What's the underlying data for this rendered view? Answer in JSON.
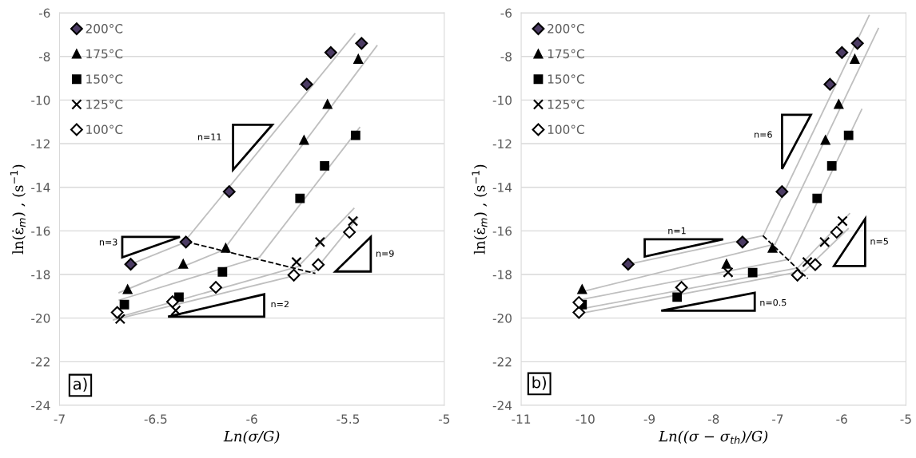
{
  "chart_data": [
    {
      "type": "scatter",
      "xlabel": "Ln(σ/G)",
      "ylabel": "ln(ε̇$_{m}$) , (s$^{−1}$)",
      "xlim": [
        -7,
        -5
      ],
      "xticks": [
        -7,
        -6.5,
        -6,
        -5.5,
        -5
      ],
      "ylim": [
        -24,
        -6
      ],
      "yticks": [
        -24,
        -22,
        -20,
        -18,
        -16,
        -14,
        -12,
        -10,
        -8,
        -6
      ],
      "grid": "y",
      "legend": "top left",
      "annotations": [
        "a)",
        "n=11",
        "n=3",
        "n=9",
        "n=2"
      ],
      "series": [
        {
          "name": "200°C",
          "marker": "diamond",
          "color": "#4b3b63",
          "x": [
            -6.63,
            -6.343,
            -6.118,
            -5.715,
            -5.59,
            -5.43
          ],
          "values": [
            -17.53,
            -16.51,
            -14.2,
            -9.28,
            -7.82,
            -7.4
          ]
        },
        {
          "name": "175°C",
          "marker": "triangle",
          "color": "#000000",
          "x": [
            -6.646,
            -6.357,
            -6.136,
            -5.729,
            -5.607,
            -5.447
          ],
          "values": [
            -18.68,
            -17.52,
            -16.79,
            -11.84,
            -10.19,
            -8.12
          ]
        },
        {
          "name": "150°C",
          "marker": "square",
          "color": "#000000",
          "x": [
            -6.663,
            -6.379,
            -6.153,
            -5.75,
            -5.622,
            -5.461
          ],
          "values": [
            -19.38,
            -19.04,
            -17.88,
            -14.51,
            -13.02,
            -11.62
          ]
        },
        {
          "name": "125°C",
          "marker": "cross",
          "color": "#000000",
          "x": [
            -6.685,
            -6.396,
            -5.768,
            -5.646,
            -5.475
          ],
          "values": [
            -20.04,
            -19.65,
            -17.43,
            -16.51,
            -15.55
          ]
        },
        {
          "name": "100°C",
          "marker": "diamond",
          "color": "#ffffff",
          "x": [
            -6.7,
            -6.4125,
            -6.1875,
            -5.782,
            -5.655,
            -5.493
          ],
          "values": [
            -19.74,
            -19.25,
            -18.59,
            -18.03,
            -17.55,
            -16.06
          ]
        },
        {
          "type": "line",
          "color": "#bfbfbf",
          "marker": "none",
          "x": [
            -6.65,
            -6.34
          ],
          "values": [
            -17.6,
            -16.5
          ]
        },
        {
          "type": "line",
          "color": "#bfbfbf",
          "marker": "none",
          "x": [
            -6.33,
            -5.465
          ],
          "values": [
            -16.27,
            -6.96
          ]
        },
        {
          "type": "line",
          "color": "#bfbfbf",
          "marker": "none",
          "x": [
            -6.69,
            -6.14
          ],
          "values": [
            -18.83,
            -16.85
          ]
        },
        {
          "type": "line",
          "color": "#bfbfbf",
          "marker": "none",
          "x": [
            -6.15,
            -5.35
          ],
          "values": [
            -16.9,
            -7.51
          ]
        },
        {
          "type": "line",
          "color": "#bfbfbf",
          "marker": "none",
          "x": [
            -6.69,
            -5.96
          ],
          "values": [
            -19.17,
            -17.2
          ]
        },
        {
          "type": "line",
          "color": "#bfbfbf",
          "marker": "none",
          "x": [
            -5.96,
            -5.44
          ],
          "values": [
            -17.2,
            -11.26
          ]
        },
        {
          "type": "line",
          "color": "#bfbfbf",
          "marker": "none",
          "x": [
            -6.71,
            -5.76
          ],
          "values": [
            -20.0,
            -17.64
          ]
        },
        {
          "type": "line",
          "color": "#bfbfbf",
          "marker": "none",
          "x": [
            -5.76,
            -5.47
          ],
          "values": [
            -17.64,
            -14.97
          ]
        },
        {
          "type": "line",
          "color": "#bfbfbf",
          "marker": "none",
          "x": [
            -6.72,
            -5.674
          ],
          "values": [
            -20.08,
            -17.83
          ]
        },
        {
          "type": "line",
          "color": "#bfbfbf",
          "marker": "none",
          "x": [
            -5.674,
            -5.45
          ],
          "values": [
            -17.83,
            -15.4
          ]
        },
        {
          "type": "line",
          "color": "#000000",
          "marker": "none",
          "line_style": "dashed",
          "x": [
            -6.34,
            -5.67
          ],
          "values": [
            -16.5,
            -17.95
          ]
        }
      ]
    },
    {
      "type": "scatter",
      "xlabel": "Ln((σ − σ$_{th}$)/G)",
      "ylabel": "ln(ε̇$_{m}$) , (s$^{−1}$)",
      "xlim": [
        -11,
        -5
      ],
      "xticks": [
        -11,
        -10,
        -9,
        -8,
        -7,
        -6,
        -5
      ],
      "ylim": [
        -24,
        -6
      ],
      "yticks": [
        -24,
        -22,
        -20,
        -18,
        -16,
        -14,
        -12,
        -10,
        -8,
        -6
      ],
      "grid": "y",
      "legend": "top left",
      "annotations": [
        "b)",
        "n=6",
        "n=1",
        "n=5",
        "n=0.5"
      ],
      "series": [
        {
          "name": "200°C",
          "marker": "diamond",
          "color": "#4b3b63",
          "x": [
            -9.332,
            -7.549,
            -6.933,
            -6.185,
            -5.998,
            -5.756
          ],
          "values": [
            -17.53,
            -16.51,
            -14.2,
            -9.28,
            -7.82,
            -7.4
          ]
        },
        {
          "name": "175°C",
          "marker": "triangle",
          "color": "#000000",
          "x": [
            -10.05,
            -7.798,
            -7.08,
            -6.255,
            -6.048,
            -5.798
          ],
          "values": [
            -18.68,
            -17.52,
            -16.79,
            -11.84,
            -10.19,
            -8.12
          ]
        },
        {
          "name": "150°C",
          "marker": "square",
          "color": "#000000",
          "x": [
            -10.05,
            -8.568,
            -7.39,
            -6.385,
            -6.156,
            -5.894
          ],
          "values": [
            -19.38,
            -19.04,
            -17.91,
            -14.51,
            -13.02,
            -11.62
          ]
        },
        {
          "name": "125°C",
          "marker": "cross",
          "color": "#000000",
          "x": [
            -7.773,
            -6.538,
            -6.268,
            -5.99
          ],
          "values": [
            -17.9,
            -17.43,
            -16.51,
            -15.55
          ]
        },
        {
          "name": "100°C",
          "marker": "diamond",
          "color": "#ffffff",
          "x": [
            -10.1,
            -10.1,
            -8.5,
            -6.692,
            -6.414,
            -6.08
          ],
          "values": [
            -19.74,
            -19.28,
            -18.59,
            -18.03,
            -17.55,
            -16.06
          ]
        },
        {
          "type": "line",
          "color": "#bfbfbf",
          "marker": "none",
          "x": [
            -9.33,
            -7.225
          ],
          "values": [
            -17.53,
            -16.22
          ]
        },
        {
          "type": "line",
          "color": "#bfbfbf",
          "marker": "none",
          "x": [
            -7.225,
            -5.574
          ],
          "values": [
            -16.22,
            -6.12
          ]
        },
        {
          "type": "line",
          "color": "#bfbfbf",
          "marker": "none",
          "x": [
            -10.03,
            -7.04
          ],
          "values": [
            -18.77,
            -16.6
          ]
        },
        {
          "type": "line",
          "color": "#bfbfbf",
          "marker": "none",
          "x": [
            -7.04,
            -5.43
          ],
          "values": [
            -16.6,
            -6.72
          ]
        },
        {
          "type": "line",
          "color": "#bfbfbf",
          "marker": "none",
          "x": [
            -10.1,
            -6.81
          ],
          "values": [
            -19.17,
            -17.3
          ]
        },
        {
          "type": "line",
          "color": "#bfbfbf",
          "marker": "none",
          "x": [
            -6.81,
            -5.69
          ],
          "values": [
            -17.3,
            -10.43
          ]
        },
        {
          "type": "line",
          "color": "#bfbfbf",
          "marker": "none",
          "x": [
            -10.1,
            -6.69
          ],
          "values": [
            -19.6,
            -17.7
          ]
        },
        {
          "type": "line",
          "color": "#bfbfbf",
          "marker": "none",
          "x": [
            -6.69,
            -5.88
          ],
          "values": [
            -17.7,
            -15.21
          ]
        },
        {
          "type": "line",
          "color": "#bfbfbf",
          "marker": "none",
          "x": [
            -10.1,
            -6.58
          ],
          "values": [
            -19.8,
            -17.83
          ]
        },
        {
          "type": "line",
          "color": "#bfbfbf",
          "marker": "none",
          "x": [
            -6.58,
            -5.9
          ],
          "values": [
            -17.83,
            -15.9
          ]
        },
        {
          "type": "line",
          "color": "#000000",
          "marker": "none",
          "line_style": "dashed",
          "x": [
            -7.23,
            -6.53
          ],
          "values": [
            -16.22,
            -18.19
          ]
        }
      ]
    }
  ]
}
